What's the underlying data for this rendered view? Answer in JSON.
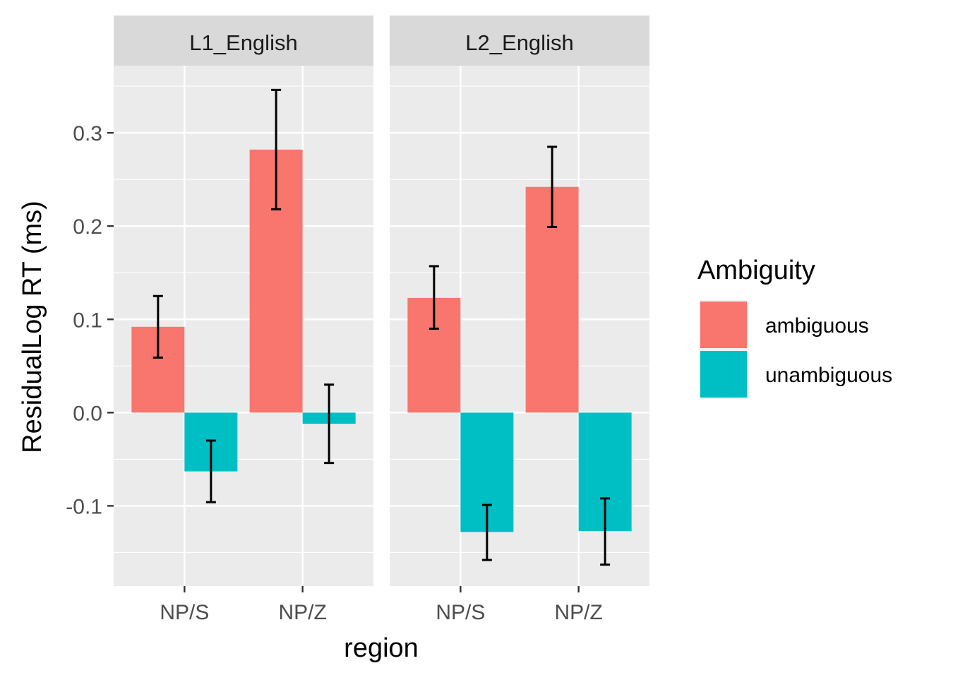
{
  "chart_data": {
    "type": "bar",
    "facets": [
      "L1_English",
      "L2_English"
    ],
    "categories": [
      "NP/S",
      "NP/Z"
    ],
    "series": [
      {
        "name": "ambiguous",
        "color": "#F8766D",
        "values": {
          "L1_English": [
            0.092,
            0.282
          ],
          "L2_English": [
            0.123,
            0.242
          ]
        },
        "error_low": {
          "L1_English": [
            0.059,
            0.218
          ],
          "L2_English": [
            0.09,
            0.199
          ]
        },
        "error_high": {
          "L1_English": [
            0.125,
            0.346
          ],
          "L2_English": [
            0.157,
            0.285
          ]
        }
      },
      {
        "name": "unambiguous",
        "color": "#00BFC4",
        "values": {
          "L1_English": [
            -0.063,
            -0.012
          ],
          "L2_English": [
            -0.128,
            -0.127
          ]
        },
        "error_low": {
          "L1_English": [
            -0.096,
            -0.054
          ],
          "L2_English": [
            -0.158,
            -0.163
          ]
        },
        "error_high": {
          "L1_English": [
            -0.03,
            0.03
          ],
          "L2_English": [
            -0.099,
            -0.092
          ]
        }
      }
    ],
    "xlabel": "region",
    "ylabel": "ResidualLog RT (ms)",
    "ylim": [
      -0.186,
      0.372
    ],
    "yticks": [
      -0.1,
      0.0,
      0.1,
      0.2,
      0.3
    ],
    "ytick_labels": [
      "-0.1",
      "0.0",
      "0.1",
      "0.2",
      "0.3"
    ],
    "legend": {
      "title": "Ambiguity",
      "placement": "right"
    },
    "grid": true
  }
}
